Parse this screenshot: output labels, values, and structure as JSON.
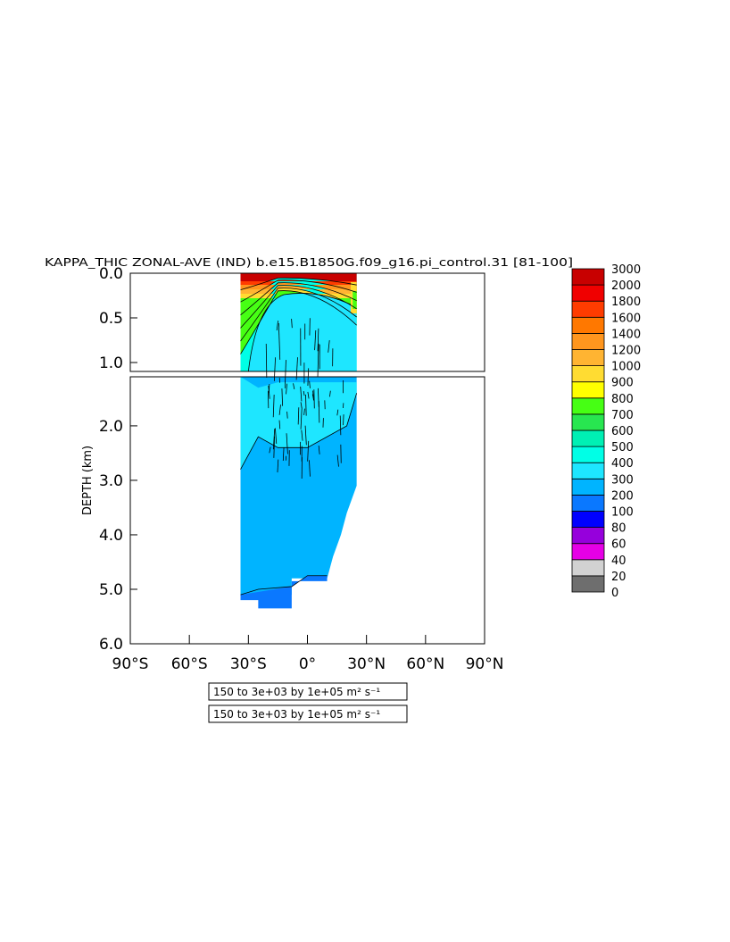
{
  "chart_data": {
    "type": "heatmap",
    "title": "KAPPA_THIC ZONAL-AVE (IND) b.e15.B1850G.f09_g16.pi_control.31 [81-100]",
    "ylabel": "DEPTH (km)",
    "xlim": [
      -90,
      90
    ],
    "ylim_upper": [
      0.0,
      1.1
    ],
    "ylim_lower": [
      1.1,
      6.0
    ],
    "x_ticks": [
      -90,
      -60,
      -30,
      0,
      30,
      60,
      90
    ],
    "x_tick_labels": [
      "90°S",
      "60°S",
      "30°S",
      "0°",
      "30°N",
      "60°N",
      "90°N"
    ],
    "y_ticks_upper": [
      0.0,
      0.5,
      1.0
    ],
    "y_tick_labels_upper": [
      "0.0",
      "0.5",
      "1.0"
    ],
    "y_ticks_lower": [
      2.0,
      3.0,
      4.0,
      5.0,
      6.0
    ],
    "y_tick_labels_lower": [
      "2.0",
      "3.0",
      "4.0",
      "5.0",
      "6.0"
    ],
    "contour_info": [
      "150 to 3e+03 by 1e+05 m² s⁻¹",
      "150 to 3e+03 by 1e+05 m² s⁻¹"
    ],
    "colorbar": {
      "levels": [
        0,
        20,
        40,
        60,
        80,
        100,
        200,
        300,
        400,
        500,
        600,
        700,
        800,
        900,
        1000,
        1200,
        1400,
        1600,
        1800,
        2000,
        3000
      ],
      "labels": [
        "0",
        "20",
        "40",
        "60",
        "80",
        "100",
        "200",
        "300",
        "400",
        "500",
        "600",
        "700",
        "800",
        "900",
        "1000",
        "1200",
        "1400",
        "1600",
        "1800",
        "2000",
        "3000"
      ],
      "colors": [
        "#6e6e6e",
        "#d2d2d2",
        "#e600e6",
        "#9600dc",
        "#0000ff",
        "#0a78ff",
        "#00b4ff",
        "#1ee6ff",
        "#00ffe6",
        "#00f0b4",
        "#28e650",
        "#46ff14",
        "#ffff00",
        "#ffdc32",
        "#ffb432",
        "#ff961e",
        "#ff7800",
        "#ff3c00",
        "#f00000",
        "#c80000"
      ]
    },
    "domain_lat": [
      -34,
      25
    ],
    "regions": [
      {
        "name": "surface-band",
        "lat": [
          -34,
          25
        ],
        "depth": [
          0.0,
          0.1
        ],
        "value": 2500
      },
      {
        "name": "upper-teal",
        "lat": [
          -34,
          -28
        ],
        "depth": [
          0.3,
          1.1
        ],
        "value": 450
      },
      {
        "name": "deep-mid",
        "lat": [
          -34,
          25
        ],
        "depth": [
          1.1,
          5.1
        ],
        "value": 250
      },
      {
        "name": "abyssal",
        "lat": [
          -34,
          10
        ],
        "depth": [
          4.8,
          5.4
        ],
        "value": 150
      }
    ]
  }
}
